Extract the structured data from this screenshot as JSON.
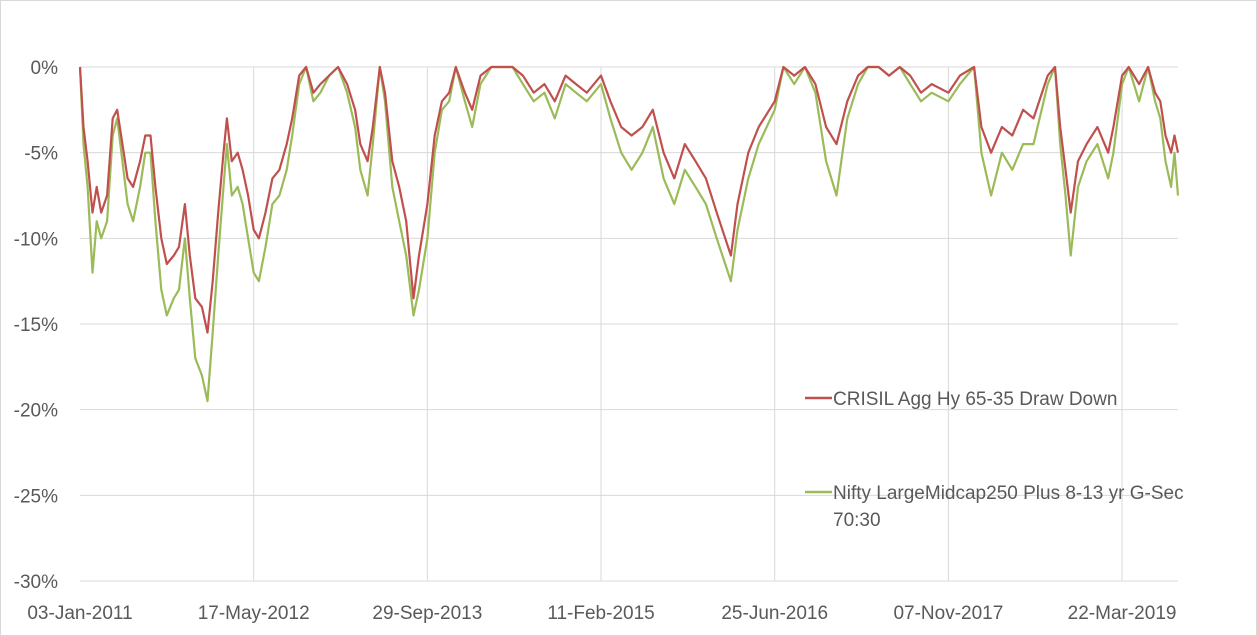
{
  "chart_data": {
    "type": "line",
    "title": "",
    "xlabel": "",
    "ylabel": "",
    "x_range": [
      "2011-01-03",
      "2019-08-30"
    ],
    "ylim": [
      -30,
      0
    ],
    "y_ticks": [
      0,
      -5,
      -10,
      -15,
      -20,
      -25,
      -30
    ],
    "y_tick_labels": [
      "0%",
      "-5%",
      "-10%",
      "-15%",
      "-20%",
      "-25%",
      "-30%"
    ],
    "x_ticks": [
      "2011-01-03",
      "2012-05-17",
      "2013-09-29",
      "2015-02-11",
      "2016-06-25",
      "2017-11-07",
      "2019-03-22"
    ],
    "x_tick_labels": [
      "03-Jan-2011",
      "17-May-2012",
      "29-Sep-2013",
      "11-Feb-2015",
      "25-Jun-2016",
      "07-Nov-2017",
      "22-Mar-2019"
    ],
    "grid": true,
    "legend_position": "right",
    "series": [
      {
        "name": "CRISIL Agg Hy 65-35 Draw Down",
        "color": "#c0504d",
        "points": [
          [
            "2011-01-03",
            0
          ],
          [
            "2011-01-13",
            -3.5
          ],
          [
            "2011-01-25",
            -5.5
          ],
          [
            "2011-02-08",
            -8.5
          ],
          [
            "2011-02-20",
            -7.0
          ],
          [
            "2011-03-05",
            -8.5
          ],
          [
            "2011-03-22",
            -7.5
          ],
          [
            "2011-04-07",
            -3.0
          ],
          [
            "2011-04-20",
            -2.5
          ],
          [
            "2011-05-05",
            -4.5
          ],
          [
            "2011-05-20",
            -6.5
          ],
          [
            "2011-06-05",
            -7.0
          ],
          [
            "2011-06-25",
            -5.5
          ],
          [
            "2011-07-10",
            -4.0
          ],
          [
            "2011-07-25",
            -4.0
          ],
          [
            "2011-08-08",
            -7.0
          ],
          [
            "2011-08-25",
            -10.0
          ],
          [
            "2011-09-10",
            -11.5
          ],
          [
            "2011-09-30",
            -11.0
          ],
          [
            "2011-10-15",
            -10.5
          ],
          [
            "2011-11-01",
            -8.0
          ],
          [
            "2011-11-15",
            -11.0
          ],
          [
            "2011-12-01",
            -13.5
          ],
          [
            "2011-12-20",
            -14.0
          ],
          [
            "2012-01-05",
            -15.5
          ],
          [
            "2012-01-20",
            -12.5
          ],
          [
            "2012-02-05",
            -8.5
          ],
          [
            "2012-02-20",
            -5.0
          ],
          [
            "2012-03-01",
            -3.0
          ],
          [
            "2012-03-15",
            -5.5
          ],
          [
            "2012-04-01",
            -5.0
          ],
          [
            "2012-04-15",
            -6.0
          ],
          [
            "2012-05-01",
            -7.5
          ],
          [
            "2012-05-17",
            -9.5
          ],
          [
            "2012-06-01",
            -10.0
          ],
          [
            "2012-06-20",
            -8.5
          ],
          [
            "2012-07-10",
            -6.5
          ],
          [
            "2012-07-30",
            -6.0
          ],
          [
            "2012-08-20",
            -4.5
          ],
          [
            "2012-09-05",
            -3.0
          ],
          [
            "2012-09-25",
            -0.5
          ],
          [
            "2012-10-15",
            0
          ],
          [
            "2012-11-05",
            -1.5
          ],
          [
            "2012-11-25",
            -1.0
          ],
          [
            "2012-12-20",
            -0.5
          ],
          [
            "2013-01-15",
            0
          ],
          [
            "2013-02-10",
            -1.0
          ],
          [
            "2013-03-05",
            -2.5
          ],
          [
            "2013-03-20",
            -4.5
          ],
          [
            "2013-04-10",
            -5.5
          ],
          [
            "2013-04-25",
            -3.5
          ],
          [
            "2013-05-15",
            0
          ],
          [
            "2013-05-30",
            -1.5
          ],
          [
            "2013-06-20",
            -5.5
          ],
          [
            "2013-07-10",
            -7.0
          ],
          [
            "2013-07-30",
            -9.0
          ],
          [
            "2013-08-20",
            -13.5
          ],
          [
            "2013-09-05",
            -11.0
          ],
          [
            "2013-09-29",
            -8.0
          ],
          [
            "2013-10-20",
            -4.0
          ],
          [
            "2013-11-10",
            -2.0
          ],
          [
            "2013-12-01",
            -1.5
          ],
          [
            "2013-12-20",
            0
          ],
          [
            "2014-01-15",
            -1.5
          ],
          [
            "2014-02-05",
            -2.5
          ],
          [
            "2014-03-01",
            -0.5
          ],
          [
            "2014-04-01",
            0
          ],
          [
            "2014-05-01",
            0
          ],
          [
            "2014-06-01",
            0
          ],
          [
            "2014-07-01",
            -0.5
          ],
          [
            "2014-08-01",
            -1.5
          ],
          [
            "2014-09-01",
            -1.0
          ],
          [
            "2014-10-01",
            -2.0
          ],
          [
            "2014-11-01",
            -0.5
          ],
          [
            "2014-12-01",
            -1.0
          ],
          [
            "2015-01-01",
            -1.5
          ],
          [
            "2015-02-11",
            -0.5
          ],
          [
            "2015-03-10",
            -2.0
          ],
          [
            "2015-04-10",
            -3.5
          ],
          [
            "2015-05-10",
            -4.0
          ],
          [
            "2015-06-10",
            -3.5
          ],
          [
            "2015-07-10",
            -2.5
          ],
          [
            "2015-08-10",
            -5.0
          ],
          [
            "2015-09-10",
            -6.5
          ],
          [
            "2015-10-10",
            -4.5
          ],
          [
            "2015-11-10",
            -5.5
          ],
          [
            "2015-12-10",
            -6.5
          ],
          [
            "2016-01-10",
            -8.5
          ],
          [
            "2016-02-20",
            -11.0
          ],
          [
            "2016-03-10",
            -8.0
          ],
          [
            "2016-04-10",
            -5.0
          ],
          [
            "2016-05-10",
            -3.5
          ],
          [
            "2016-06-25",
            -2.0
          ],
          [
            "2016-07-20",
            0
          ],
          [
            "2016-08-20",
            -0.5
          ],
          [
            "2016-09-20",
            0
          ],
          [
            "2016-10-20",
            -1.0
          ],
          [
            "2016-11-20",
            -3.5
          ],
          [
            "2016-12-20",
            -4.5
          ],
          [
            "2017-01-20",
            -2.0
          ],
          [
            "2017-02-20",
            -0.5
          ],
          [
            "2017-03-20",
            0
          ],
          [
            "2017-04-20",
            0
          ],
          [
            "2017-05-20",
            -0.5
          ],
          [
            "2017-06-20",
            0
          ],
          [
            "2017-07-20",
            -0.5
          ],
          [
            "2017-08-20",
            -1.5
          ],
          [
            "2017-09-20",
            -1.0
          ],
          [
            "2017-11-07",
            -1.5
          ],
          [
            "2017-12-10",
            -0.5
          ],
          [
            "2018-01-20",
            0
          ],
          [
            "2018-02-10",
            -3.5
          ],
          [
            "2018-03-10",
            -5.0
          ],
          [
            "2018-04-10",
            -3.5
          ],
          [
            "2018-05-10",
            -4.0
          ],
          [
            "2018-06-10",
            -2.5
          ],
          [
            "2018-07-10",
            -3.0
          ],
          [
            "2018-08-20",
            -0.5
          ],
          [
            "2018-09-10",
            0
          ],
          [
            "2018-09-25",
            -3.5
          ],
          [
            "2018-10-10",
            -6.0
          ],
          [
            "2018-10-25",
            -8.5
          ],
          [
            "2018-11-15",
            -5.5
          ],
          [
            "2018-12-10",
            -4.5
          ],
          [
            "2019-01-10",
            -3.5
          ],
          [
            "2019-02-10",
            -5.0
          ],
          [
            "2019-02-25",
            -3.5
          ],
          [
            "2019-03-22",
            -0.5
          ],
          [
            "2019-04-10",
            0
          ],
          [
            "2019-05-10",
            -1.0
          ],
          [
            "2019-06-05",
            0
          ],
          [
            "2019-06-25",
            -1.5
          ],
          [
            "2019-07-10",
            -2.0
          ],
          [
            "2019-07-25",
            -4.0
          ],
          [
            "2019-08-10",
            -5.0
          ],
          [
            "2019-08-20",
            -4.0
          ],
          [
            "2019-08-30",
            -5.0
          ]
        ]
      },
      {
        "name": "Nifty LargeMidcap250 Plus 8-13 yr G-Sec 70:30",
        "color": "#9bbb59",
        "points": [
          [
            "2011-01-03",
            0
          ],
          [
            "2011-01-13",
            -4.5
          ],
          [
            "2011-01-25",
            -7.0
          ],
          [
            "2011-02-08",
            -12.0
          ],
          [
            "2011-02-20",
            -9.0
          ],
          [
            "2011-03-05",
            -10.0
          ],
          [
            "2011-03-22",
            -9.0
          ],
          [
            "2011-04-07",
            -4.0
          ],
          [
            "2011-04-20",
            -3.0
          ],
          [
            "2011-05-05",
            -5.5
          ],
          [
            "2011-05-20",
            -8.0
          ],
          [
            "2011-06-05",
            -9.0
          ],
          [
            "2011-06-25",
            -7.0
          ],
          [
            "2011-07-10",
            -5.0
          ],
          [
            "2011-07-25",
            -5.0
          ],
          [
            "2011-08-08",
            -9.0
          ],
          [
            "2011-08-25",
            -13.0
          ],
          [
            "2011-09-10",
            -14.5
          ],
          [
            "2011-09-30",
            -13.5
          ],
          [
            "2011-10-15",
            -13.0
          ],
          [
            "2011-11-01",
            -10.0
          ],
          [
            "2011-11-15",
            -13.5
          ],
          [
            "2011-12-01",
            -17.0
          ],
          [
            "2011-12-20",
            -18.0
          ],
          [
            "2012-01-05",
            -19.5
          ],
          [
            "2012-01-20",
            -15.5
          ],
          [
            "2012-02-05",
            -11.0
          ],
          [
            "2012-02-20",
            -7.0
          ],
          [
            "2012-03-01",
            -4.5
          ],
          [
            "2012-03-15",
            -7.5
          ],
          [
            "2012-04-01",
            -7.0
          ],
          [
            "2012-04-15",
            -8.0
          ],
          [
            "2012-05-01",
            -10.0
          ],
          [
            "2012-05-17",
            -12.0
          ],
          [
            "2012-06-01",
            -12.5
          ],
          [
            "2012-06-20",
            -10.5
          ],
          [
            "2012-07-10",
            -8.0
          ],
          [
            "2012-07-30",
            -7.5
          ],
          [
            "2012-08-20",
            -6.0
          ],
          [
            "2012-09-05",
            -4.0
          ],
          [
            "2012-09-25",
            -1.0
          ],
          [
            "2012-10-15",
            0
          ],
          [
            "2012-11-05",
            -2.0
          ],
          [
            "2012-11-25",
            -1.5
          ],
          [
            "2012-12-20",
            -0.5
          ],
          [
            "2013-01-15",
            0
          ],
          [
            "2013-02-10",
            -1.5
          ],
          [
            "2013-03-05",
            -3.5
          ],
          [
            "2013-03-20",
            -6.0
          ],
          [
            "2013-04-10",
            -7.5
          ],
          [
            "2013-04-25",
            -4.5
          ],
          [
            "2013-05-15",
            0
          ],
          [
            "2013-05-30",
            -2.0
          ],
          [
            "2013-06-20",
            -7.0
          ],
          [
            "2013-07-10",
            -9.0
          ],
          [
            "2013-07-30",
            -11.0
          ],
          [
            "2013-08-20",
            -14.5
          ],
          [
            "2013-09-05",
            -13.0
          ],
          [
            "2013-09-29",
            -10.0
          ],
          [
            "2013-10-20",
            -5.0
          ],
          [
            "2013-11-10",
            -2.5
          ],
          [
            "2013-12-01",
            -2.0
          ],
          [
            "2013-12-20",
            0
          ],
          [
            "2014-01-15",
            -2.0
          ],
          [
            "2014-02-05",
            -3.5
          ],
          [
            "2014-03-01",
            -1.0
          ],
          [
            "2014-04-01",
            0
          ],
          [
            "2014-05-01",
            0
          ],
          [
            "2014-06-01",
            0
          ],
          [
            "2014-07-01",
            -1.0
          ],
          [
            "2014-08-01",
            -2.0
          ],
          [
            "2014-09-01",
            -1.5
          ],
          [
            "2014-10-01",
            -3.0
          ],
          [
            "2014-11-01",
            -1.0
          ],
          [
            "2014-12-01",
            -1.5
          ],
          [
            "2015-01-01",
            -2.0
          ],
          [
            "2015-02-11",
            -1.0
          ],
          [
            "2015-03-10",
            -3.0
          ],
          [
            "2015-04-10",
            -5.0
          ],
          [
            "2015-05-10",
            -6.0
          ],
          [
            "2015-06-10",
            -5.0
          ],
          [
            "2015-07-10",
            -3.5
          ],
          [
            "2015-08-10",
            -6.5
          ],
          [
            "2015-09-10",
            -8.0
          ],
          [
            "2015-10-10",
            -6.0
          ],
          [
            "2015-11-10",
            -7.0
          ],
          [
            "2015-12-10",
            -8.0
          ],
          [
            "2016-01-10",
            -10.0
          ],
          [
            "2016-02-20",
            -12.5
          ],
          [
            "2016-03-10",
            -9.5
          ],
          [
            "2016-04-10",
            -6.5
          ],
          [
            "2016-05-10",
            -4.5
          ],
          [
            "2016-06-25",
            -2.5
          ],
          [
            "2016-07-20",
            0
          ],
          [
            "2016-08-20",
            -1.0
          ],
          [
            "2016-09-20",
            0
          ],
          [
            "2016-10-20",
            -1.5
          ],
          [
            "2016-11-20",
            -5.5
          ],
          [
            "2016-12-20",
            -7.5
          ],
          [
            "2017-01-20",
            -3.0
          ],
          [
            "2017-02-20",
            -1.0
          ],
          [
            "2017-03-20",
            0
          ],
          [
            "2017-04-20",
            0
          ],
          [
            "2017-05-20",
            -0.5
          ],
          [
            "2017-06-20",
            0
          ],
          [
            "2017-07-20",
            -1.0
          ],
          [
            "2017-08-20",
            -2.0
          ],
          [
            "2017-09-20",
            -1.5
          ],
          [
            "2017-11-07",
            -2.0
          ],
          [
            "2017-12-10",
            -1.0
          ],
          [
            "2018-01-20",
            0
          ],
          [
            "2018-02-10",
            -5.0
          ],
          [
            "2018-03-10",
            -7.5
          ],
          [
            "2018-04-10",
            -5.0
          ],
          [
            "2018-05-10",
            -6.0
          ],
          [
            "2018-06-10",
            -4.5
          ],
          [
            "2018-07-10",
            -4.5
          ],
          [
            "2018-08-20",
            -1.0
          ],
          [
            "2018-09-10",
            0
          ],
          [
            "2018-09-25",
            -4.5
          ],
          [
            "2018-10-10",
            -7.5
          ],
          [
            "2018-10-25",
            -11.0
          ],
          [
            "2018-11-15",
            -7.0
          ],
          [
            "2018-12-10",
            -5.5
          ],
          [
            "2019-01-10",
            -4.5
          ],
          [
            "2019-02-10",
            -6.5
          ],
          [
            "2019-02-25",
            -5.0
          ],
          [
            "2019-03-22",
            -1.0
          ],
          [
            "2019-04-10",
            0
          ],
          [
            "2019-05-10",
            -2.0
          ],
          [
            "2019-06-05",
            0
          ],
          [
            "2019-06-25",
            -2.0
          ],
          [
            "2019-07-10",
            -3.0
          ],
          [
            "2019-07-25",
            -5.5
          ],
          [
            "2019-08-10",
            -7.0
          ],
          [
            "2019-08-20",
            -5.0
          ],
          [
            "2019-08-30",
            -7.5
          ]
        ]
      }
    ]
  }
}
